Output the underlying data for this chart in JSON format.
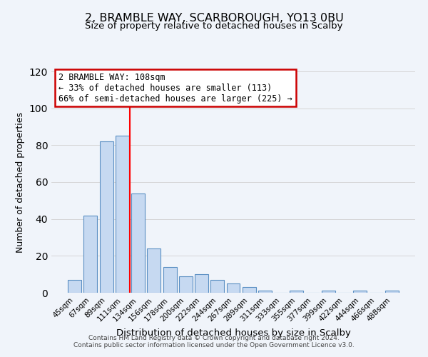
{
  "title": "2, BRAMBLE WAY, SCARBOROUGH, YO13 0BU",
  "subtitle": "Size of property relative to detached houses in Scalby",
  "xlabel": "Distribution of detached houses by size in Scalby",
  "ylabel": "Number of detached properties",
  "bar_labels": [
    "45sqm",
    "67sqm",
    "89sqm",
    "111sqm",
    "134sqm",
    "156sqm",
    "178sqm",
    "200sqm",
    "222sqm",
    "244sqm",
    "267sqm",
    "289sqm",
    "311sqm",
    "333sqm",
    "355sqm",
    "377sqm",
    "399sqm",
    "422sqm",
    "444sqm",
    "466sqm",
    "488sqm"
  ],
  "bar_heights": [
    7,
    42,
    82,
    85,
    54,
    24,
    14,
    9,
    10,
    7,
    5,
    3,
    1,
    0,
    1,
    0,
    1,
    0,
    1,
    0,
    1
  ],
  "bar_color": "#c6d9f1",
  "bar_edge_color": "#5a8fc3",
  "vline_x": 3.5,
  "vline_color": "red",
  "ylim": [
    0,
    120
  ],
  "yticks": [
    0,
    20,
    40,
    60,
    80,
    100,
    120
  ],
  "annotation_title": "2 BRAMBLE WAY: 108sqm",
  "annotation_line1": "← 33% of detached houses are smaller (113)",
  "annotation_line2": "66% of semi-detached houses are larger (225) →",
  "annotation_box_color": "#ffffff",
  "annotation_box_edge": "#cc0000",
  "footer1": "Contains HM Land Registry data © Crown copyright and database right 2024.",
  "footer2": "Contains public sector information licensed under the Open Government Licence v3.0.",
  "grid_color": "#d0d0d0",
  "background_color": "#f0f4fa"
}
